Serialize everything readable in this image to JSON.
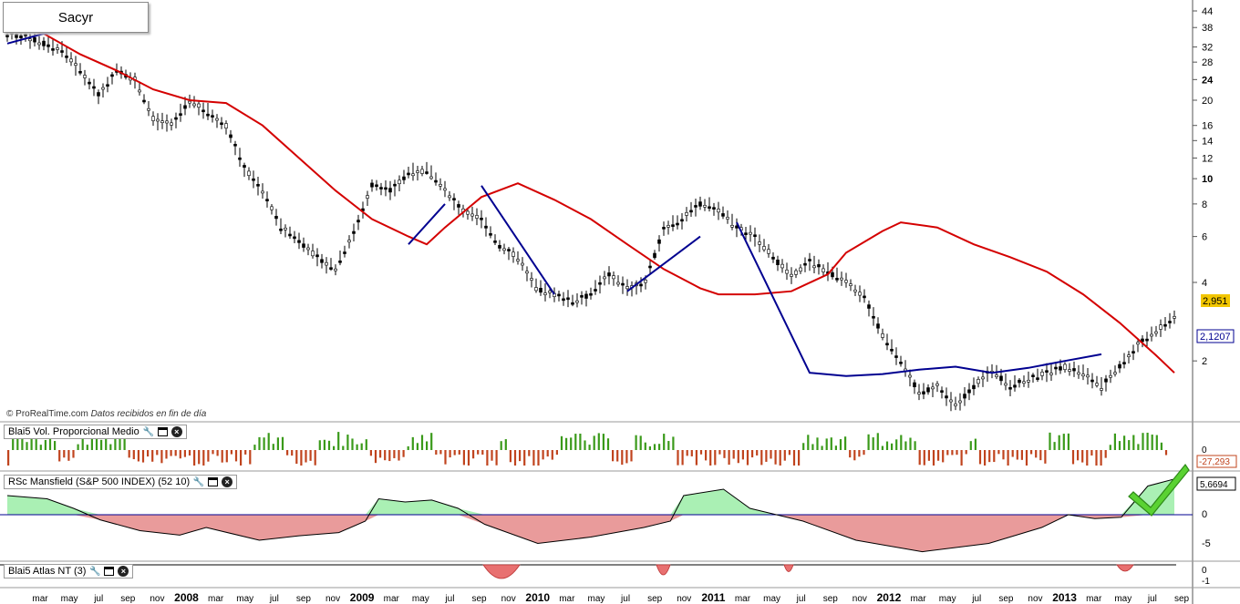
{
  "title": "Sacyr",
  "watermark": {
    "brand": "© ProRealTime.com",
    "note": "Datos recibidos en fin de día"
  },
  "panels": {
    "volume": {
      "label": "Blai5 Vol. Proporcional Medio",
      "axis_ticks": [
        "0"
      ],
      "last_value": "-27,293"
    },
    "mansfield": {
      "label": "RSc Mansfield (S&P 500 INDEX) (52 10)",
      "axis_ticks": [
        "0",
        "-5"
      ],
      "last_value": "5,6694"
    },
    "atlas": {
      "label": "Blai5 Atlas NT (3)",
      "axis_ticks": [
        "0",
        "-1"
      ]
    }
  },
  "price_badges": {
    "last": "2,951",
    "ma_blue": "2,1207"
  },
  "colors": {
    "red_ma": "#d40000",
    "blue_ma": "#000090",
    "green_fill": "#aaf0b4",
    "red_fill": "#e07070",
    "vol_up": "#3a9a1a",
    "vol_down": "#c0441e",
    "badge_yellow": "#f2c600",
    "check": "#5ad232"
  },
  "chart_data": {
    "type": "line",
    "scale": "log",
    "y_ticks": [
      "44",
      "38",
      "32",
      "28",
      "24",
      "20",
      "16",
      "14",
      "12",
      "10",
      "8",
      "6",
      "4",
      "2"
    ],
    "y_ticks_bold": [
      "24",
      "10"
    ],
    "x_labels": [
      "mar",
      "may",
      "jul",
      "sep",
      "nov",
      "2008",
      "mar",
      "may",
      "jul",
      "sep",
      "nov",
      "2009",
      "mar",
      "may",
      "jul",
      "sep",
      "nov",
      "2010",
      "mar",
      "may",
      "jul",
      "sep",
      "nov",
      "2011",
      "mar",
      "may",
      "jul",
      "sep",
      "nov",
      "2012",
      "mar",
      "may",
      "jul",
      "sep",
      "nov",
      "2013",
      "mar",
      "may",
      "jul",
      "sep"
    ],
    "series": [
      {
        "values": [
          [
            0,
            36
          ],
          [
            1,
            35
          ],
          [
            2,
            33
          ],
          [
            3,
            31
          ],
          [
            4,
            26
          ],
          [
            5,
            21
          ],
          [
            6,
            26
          ],
          [
            7,
            24
          ],
          [
            8,
            17
          ],
          [
            9,
            16
          ],
          [
            10,
            20
          ],
          [
            11,
            18
          ],
          [
            12,
            16
          ],
          [
            13,
            11
          ],
          [
            14,
            9
          ],
          [
            15,
            6.5
          ],
          [
            16,
            5.8
          ],
          [
            17,
            5.0
          ],
          [
            18,
            4.5
          ],
          [
            19,
            6.2
          ],
          [
            20,
            9.5
          ],
          [
            21,
            9.0
          ],
          [
            22,
            10.5
          ],
          [
            23,
            10.8
          ],
          [
            24,
            9.0
          ],
          [
            25,
            7.5
          ],
          [
            26,
            7.0
          ],
          [
            27,
            5.5
          ],
          [
            28,
            5.0
          ],
          [
            29,
            3.8
          ],
          [
            30,
            3.6
          ],
          [
            31,
            3.4
          ],
          [
            32,
            3.6
          ],
          [
            33,
            4.3
          ],
          [
            34,
            3.8
          ],
          [
            35,
            4.0
          ],
          [
            36,
            6.5
          ],
          [
            37,
            7.0
          ],
          [
            38,
            8.0
          ],
          [
            39,
            7.6
          ],
          [
            40,
            6.5
          ],
          [
            41,
            6.0
          ],
          [
            42,
            5.0
          ],
          [
            43,
            4.2
          ],
          [
            44,
            4.8
          ],
          [
            45,
            4.4
          ],
          [
            46,
            4.0
          ],
          [
            47,
            3.5
          ],
          [
            48,
            2.5
          ],
          [
            49,
            2.0
          ],
          [
            50,
            1.5
          ],
          [
            51,
            1.6
          ],
          [
            52,
            1.35
          ],
          [
            53,
            1.6
          ],
          [
            54,
            1.85
          ],
          [
            55,
            1.6
          ],
          [
            56,
            1.7
          ],
          [
            57,
            1.8
          ],
          [
            58,
            1.9
          ],
          [
            59,
            1.8
          ],
          [
            60,
            1.6
          ],
          [
            61,
            1.9
          ],
          [
            62,
            2.3
          ],
          [
            63,
            2.6
          ],
          [
            64,
            2.951
          ]
        ]
      },
      {
        "values": [
          [
            0,
            38
          ],
          [
            2,
            36
          ],
          [
            4,
            30
          ],
          [
            6,
            26
          ],
          [
            8,
            22
          ],
          [
            10,
            20
          ],
          [
            12,
            19.5
          ],
          [
            14,
            16
          ],
          [
            16,
            12
          ],
          [
            18,
            9
          ],
          [
            20,
            7
          ],
          [
            22,
            6
          ],
          [
            23,
            5.6
          ],
          [
            24,
            6.5
          ],
          [
            26,
            8.5
          ],
          [
            28,
            9.6
          ],
          [
            30,
            8.3
          ],
          [
            32,
            7
          ],
          [
            34,
            5.6
          ],
          [
            36,
            4.5
          ],
          [
            38,
            3.8
          ],
          [
            39,
            3.6
          ],
          [
            41,
            3.6
          ],
          [
            43,
            3.7
          ],
          [
            45,
            4.3
          ],
          [
            46,
            5.2
          ],
          [
            48,
            6.3
          ],
          [
            49,
            6.8
          ],
          [
            51,
            6.5
          ],
          [
            53,
            5.6
          ],
          [
            55,
            5.0
          ],
          [
            57,
            4.4
          ],
          [
            59,
            3.6
          ],
          [
            61,
            2.8
          ],
          [
            63,
            2.1
          ],
          [
            64,
            1.8
          ]
        ]
      },
      {
        "values": [
          [
            0,
            33
          ],
          [
            2,
            36
          ],
          [
            4,
            37
          ],
          [
            6,
            37.5
          ],
          [
            22,
            5.6
          ],
          [
            24,
            8.0
          ],
          [
            26,
            9.4
          ],
          [
            30,
            3.6
          ],
          [
            34,
            3.7
          ],
          [
            38,
            6.0
          ],
          [
            40,
            6.8
          ],
          [
            44,
            1.8
          ],
          [
            46,
            1.75
          ],
          [
            48,
            1.78
          ],
          [
            50,
            1.85
          ],
          [
            52,
            1.9
          ],
          [
            54,
            1.8
          ],
          [
            56,
            1.88
          ],
          [
            58,
            2.0
          ],
          [
            60,
            2.12
          ]
        ]
      }
    ]
  }
}
